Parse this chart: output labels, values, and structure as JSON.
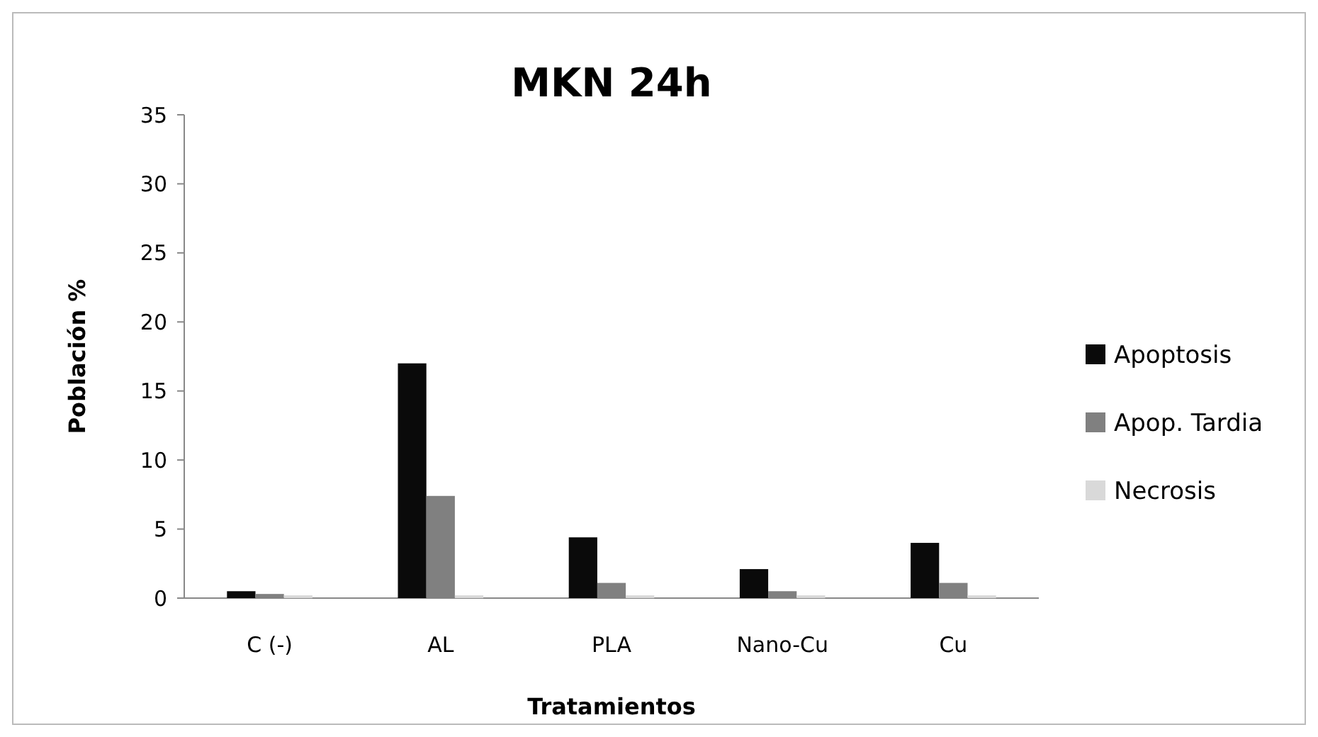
{
  "chart_data": {
    "type": "bar",
    "title": "MKN 24h",
    "xlabel": "Tratamientos",
    "ylabel": "Población %",
    "categories": [
      "C (-)",
      "AL",
      "PLA",
      "Nano-Cu",
      "Cu"
    ],
    "series": [
      {
        "name": "Apoptosis",
        "color": "#0a0a0a",
        "values": [
          0.5,
          17,
          4.4,
          2.1,
          4.0
        ]
      },
      {
        "name": "Apop. Tardia",
        "color": "#808080",
        "values": [
          0.3,
          7.4,
          1.1,
          0.5,
          1.1
        ]
      },
      {
        "name": "Necrosis",
        "color": "#d9d9d9",
        "values": [
          0.2,
          0.2,
          0.2,
          0.2,
          0.2
        ]
      }
    ],
    "ylim": [
      0,
      35
    ],
    "yticks": [
      0,
      5,
      10,
      15,
      20,
      25,
      30,
      35
    ],
    "grid": false,
    "legend": "right"
  }
}
